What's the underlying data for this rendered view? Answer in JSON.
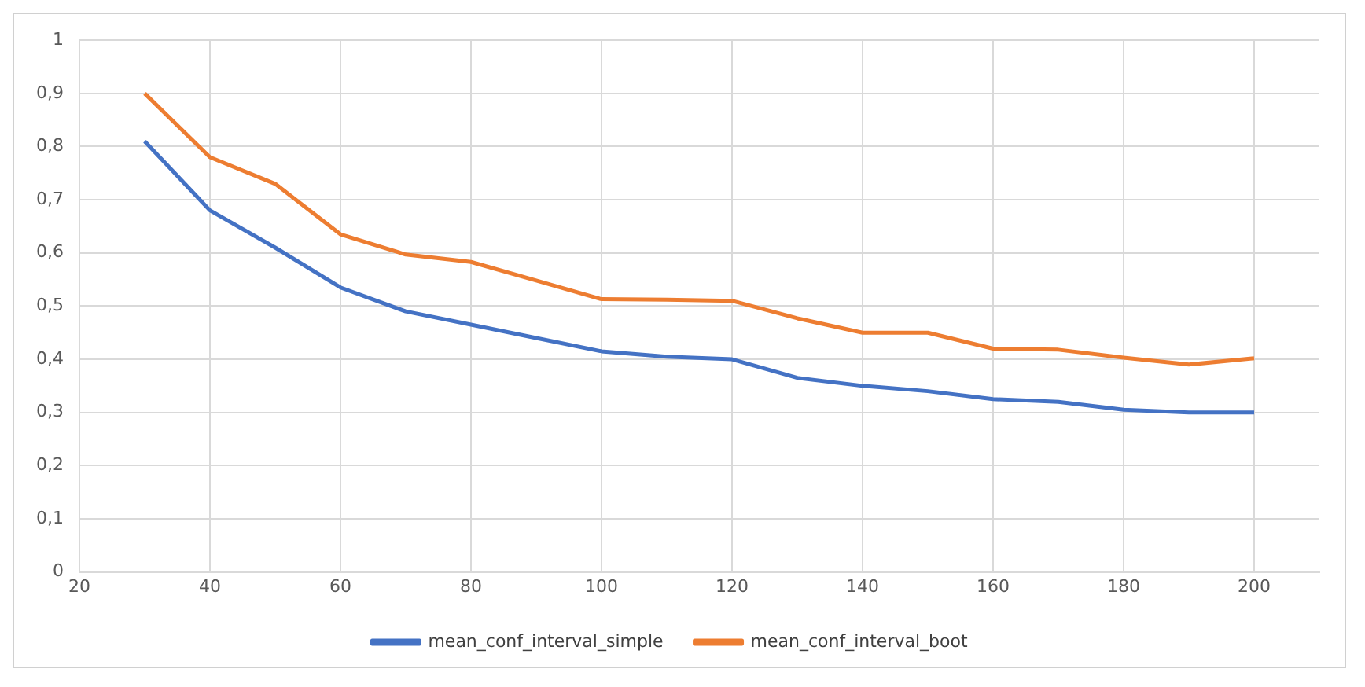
{
  "chart_data": {
    "type": "line",
    "x": [
      30,
      40,
      50,
      60,
      70,
      80,
      90,
      100,
      110,
      120,
      130,
      140,
      150,
      160,
      170,
      180,
      190,
      200
    ],
    "series": [
      {
        "name": "mean_conf_interval_simple",
        "color": "#4472c4",
        "values": [
          0.81,
          0.68,
          0.61,
          0.535,
          0.49,
          0.465,
          0.44,
          0.415,
          0.405,
          0.4,
          0.365,
          0.35,
          0.34,
          0.325,
          0.32,
          0.305,
          0.3,
          0.3
        ]
      },
      {
        "name": "mean_conf_interval_boot",
        "color": "#ed7d31",
        "values": [
          0.9,
          0.78,
          0.73,
          0.635,
          0.597,
          0.583,
          0.548,
          0.513,
          0.512,
          0.51,
          0.477,
          0.45,
          0.45,
          0.42,
          0.418,
          0.403,
          0.39,
          0.402
        ]
      }
    ],
    "xlim": [
      20,
      210
    ],
    "xticks": [
      20,
      40,
      60,
      80,
      100,
      120,
      140,
      160,
      180,
      200
    ],
    "ylim": [
      0,
      1
    ],
    "yticks": [
      {
        "value": 0,
        "label": "0"
      },
      {
        "value": 0.1,
        "label": "0,1"
      },
      {
        "value": 0.2,
        "label": "0,2"
      },
      {
        "value": 0.3,
        "label": "0,3"
      },
      {
        "value": 0.4,
        "label": "0,4"
      },
      {
        "value": 0.5,
        "label": "0,5"
      },
      {
        "value": 0.6,
        "label": "0,6"
      },
      {
        "value": 0.7,
        "label": "0,7"
      },
      {
        "value": 0.8,
        "label": "0,8"
      },
      {
        "value": 0.9,
        "label": "0,9"
      },
      {
        "value": 1,
        "label": "1"
      }
    ],
    "grid": true,
    "legend": "bottom",
    "marker": "none",
    "line_style": "solid"
  }
}
